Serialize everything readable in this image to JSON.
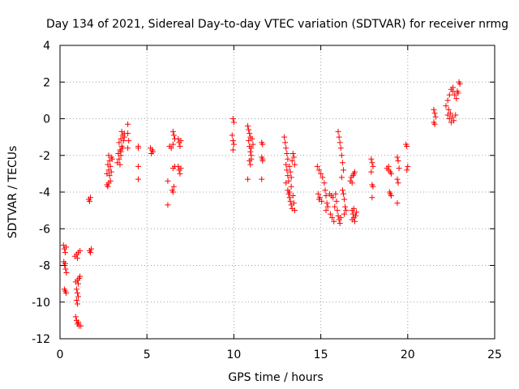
{
  "chart_data": {
    "type": "scatter",
    "title": "Day 134 of 2021, Sidereal Day-to-day VTEC variation (SDTVAR) for receiver nrmg",
    "xlabel": "GPS time / hours",
    "ylabel": "SDTVAR / TECUs",
    "xlim": [
      0,
      25
    ],
    "ylim": [
      -12,
      4
    ],
    "xticks": [
      0,
      5,
      10,
      15,
      20,
      25
    ],
    "yticks": [
      -12,
      -10,
      -8,
      -6,
      -4,
      -2,
      0,
      2,
      4
    ],
    "grid": true,
    "marker": "+",
    "marker_color": "#ff0000",
    "series": [
      {
        "name": "SDTVAR",
        "points": [
          [
            0.2,
            -6.9
          ],
          [
            0.25,
            -7.1
          ],
          [
            0.3,
            -7.3
          ],
          [
            0.35,
            -7.0
          ],
          [
            0.22,
            -7.8
          ],
          [
            0.27,
            -8.0
          ],
          [
            0.32,
            -8.2
          ],
          [
            0.37,
            -8.4
          ],
          [
            0.3,
            -7.9
          ],
          [
            0.25,
            -9.3
          ],
          [
            0.3,
            -9.4
          ],
          [
            0.35,
            -9.5
          ],
          [
            0.85,
            -7.5
          ],
          [
            0.95,
            -7.4
          ],
          [
            1.05,
            -7.3
          ],
          [
            1.15,
            -7.2
          ],
          [
            1.0,
            -7.6
          ],
          [
            0.9,
            -8.9
          ],
          [
            1.0,
            -8.8
          ],
          [
            1.1,
            -8.7
          ],
          [
            1.15,
            -8.6
          ],
          [
            1.05,
            -9.0
          ],
          [
            0.95,
            -9.3
          ],
          [
            1.0,
            -9.5
          ],
          [
            1.05,
            -9.7
          ],
          [
            0.95,
            -9.9
          ],
          [
            1.0,
            -10.1
          ],
          [
            0.9,
            -10.8
          ],
          [
            0.95,
            -11.0
          ],
          [
            1.0,
            -11.2
          ],
          [
            1.1,
            -11.3
          ],
          [
            1.2,
            -11.3
          ],
          [
            1.05,
            -11.1
          ],
          [
            1.7,
            -7.2
          ],
          [
            1.8,
            -7.1
          ],
          [
            1.75,
            -7.3
          ],
          [
            1.65,
            -4.4
          ],
          [
            1.75,
            -4.3
          ],
          [
            1.7,
            -4.5
          ],
          [
            2.7,
            -3.6
          ],
          [
            2.8,
            -3.5
          ],
          [
            2.9,
            -3.4
          ],
          [
            2.75,
            -3.7
          ],
          [
            2.7,
            -3.0
          ],
          [
            2.8,
            -2.8
          ],
          [
            2.9,
            -2.6
          ],
          [
            2.75,
            -2.5
          ],
          [
            2.85,
            -2.3
          ],
          [
            2.95,
            -2.1
          ],
          [
            2.8,
            -2.0
          ],
          [
            3.0,
            -2.2
          ],
          [
            2.85,
            -3.1
          ],
          [
            2.95,
            -2.9
          ],
          [
            3.3,
            -2.4
          ],
          [
            3.4,
            -2.2
          ],
          [
            3.5,
            -2.0
          ],
          [
            3.35,
            -1.9
          ],
          [
            3.45,
            -1.7
          ],
          [
            3.55,
            -1.5
          ],
          [
            3.4,
            -1.3
          ],
          [
            3.5,
            -1.1
          ],
          [
            3.6,
            -0.9
          ],
          [
            3.7,
            -0.8
          ],
          [
            3.55,
            -0.7
          ],
          [
            3.65,
            -1.2
          ],
          [
            3.6,
            -1.6
          ],
          [
            3.45,
            -2.5
          ],
          [
            3.7,
            -1.0
          ],
          [
            3.5,
            -1.8
          ],
          [
            3.9,
            -0.3
          ],
          [
            3.9,
            -0.8
          ],
          [
            3.95,
            -1.2
          ],
          [
            3.9,
            -1.6
          ],
          [
            4.5,
            -1.5
          ],
          [
            4.5,
            -1.6
          ],
          [
            4.5,
            -2.6
          ],
          [
            4.5,
            -3.3
          ],
          [
            5.2,
            -1.6
          ],
          [
            5.3,
            -1.7
          ],
          [
            5.25,
            -1.9
          ],
          [
            5.35,
            -1.8
          ],
          [
            6.2,
            -3.4
          ],
          [
            6.2,
            -4.7
          ],
          [
            6.3,
            -1.5
          ],
          [
            6.4,
            -1.6
          ],
          [
            6.5,
            -1.4
          ],
          [
            6.5,
            -0.7
          ],
          [
            6.55,
            -0.9
          ],
          [
            6.6,
            -1.1
          ],
          [
            6.5,
            -2.7
          ],
          [
            6.6,
            -2.6
          ],
          [
            6.45,
            -3.9
          ],
          [
            6.5,
            -4.0
          ],
          [
            6.55,
            -3.7
          ],
          [
            6.8,
            -1.1
          ],
          [
            6.85,
            -1.3
          ],
          [
            6.9,
            -1.5
          ],
          [
            6.95,
            -1.2
          ],
          [
            6.8,
            -2.6
          ],
          [
            6.85,
            -2.8
          ],
          [
            6.9,
            -3.0
          ],
          [
            6.95,
            -2.7
          ],
          [
            9.95,
            0.0
          ],
          [
            10.0,
            -0.2
          ],
          [
            9.9,
            -0.9
          ],
          [
            9.95,
            -1.2
          ],
          [
            10.0,
            -1.4
          ],
          [
            9.95,
            -1.7
          ],
          [
            10.8,
            -0.4
          ],
          [
            10.85,
            -0.6
          ],
          [
            10.9,
            -0.8
          ],
          [
            10.95,
            -1.0
          ],
          [
            10.85,
            -1.2
          ],
          [
            10.9,
            -1.5
          ],
          [
            10.95,
            -1.8
          ],
          [
            11.0,
            -2.0
          ],
          [
            11.05,
            -1.1
          ],
          [
            11.1,
            -1.4
          ],
          [
            10.9,
            -2.3
          ],
          [
            10.8,
            -3.3
          ],
          [
            11.0,
            -1.6
          ],
          [
            11.0,
            -2.2
          ],
          [
            10.95,
            -2.5
          ],
          [
            11.6,
            -1.3
          ],
          [
            11.65,
            -1.4
          ],
          [
            11.6,
            -2.1
          ],
          [
            11.65,
            -2.3
          ],
          [
            11.6,
            -3.3
          ],
          [
            11.65,
            -2.2
          ],
          [
            12.9,
            -1.0
          ],
          [
            12.95,
            -1.3
          ],
          [
            13.0,
            -1.6
          ],
          [
            13.05,
            -1.9
          ],
          [
            13.1,
            -2.2
          ],
          [
            13.0,
            -2.5
          ],
          [
            13.05,
            -2.8
          ],
          [
            13.1,
            -3.1
          ],
          [
            13.15,
            -3.4
          ],
          [
            13.2,
            -2.6
          ],
          [
            13.25,
            -2.9
          ],
          [
            13.3,
            -3.2
          ],
          [
            13.35,
            -2.3
          ],
          [
            13.4,
            -1.9
          ],
          [
            13.45,
            -2.1
          ],
          [
            13.5,
            -2.5
          ],
          [
            13.1,
            -3.9
          ],
          [
            13.15,
            -4.1
          ],
          [
            13.2,
            -4.3
          ],
          [
            13.25,
            -4.5
          ],
          [
            13.3,
            -4.7
          ],
          [
            13.35,
            -4.9
          ],
          [
            13.4,
            -4.2
          ],
          [
            13.45,
            -4.6
          ],
          [
            13.5,
            -5.0
          ],
          [
            13.2,
            -4.0
          ],
          [
            13.3,
            -3.7
          ],
          [
            13.0,
            -3.5
          ],
          [
            14.8,
            -2.6
          ],
          [
            14.9,
            -2.8
          ],
          [
            15.0,
            -3.0
          ],
          [
            15.1,
            -3.2
          ],
          [
            14.85,
            -4.1
          ],
          [
            14.95,
            -4.3
          ],
          [
            15.05,
            -4.5
          ],
          [
            14.9,
            -4.4
          ],
          [
            15.2,
            -3.5
          ],
          [
            15.25,
            -3.9
          ],
          [
            15.3,
            -4.2
          ],
          [
            15.35,
            -4.6
          ],
          [
            15.4,
            -4.8
          ],
          [
            15.3,
            -5.0
          ],
          [
            15.5,
            -4.1
          ],
          [
            15.6,
            -4.2
          ],
          [
            15.7,
            -4.3
          ],
          [
            15.55,
            -5.2
          ],
          [
            15.65,
            -5.4
          ],
          [
            15.75,
            -5.6
          ],
          [
            15.8,
            -4.8
          ],
          [
            15.85,
            -4.1
          ],
          [
            15.9,
            -4.5
          ],
          [
            15.95,
            -5.0
          ],
          [
            16.0,
            -5.3
          ],
          [
            16.05,
            -5.5
          ],
          [
            16.1,
            -5.7
          ],
          [
            16.15,
            -5.4
          ],
          [
            16.0,
            -0.7
          ],
          [
            16.05,
            -1.0
          ],
          [
            16.1,
            -1.3
          ],
          [
            16.15,
            -1.6
          ],
          [
            16.2,
            -2.0
          ],
          [
            16.25,
            -2.4
          ],
          [
            16.3,
            -2.8
          ],
          [
            16.2,
            -3.2
          ],
          [
            16.25,
            -3.9
          ],
          [
            16.3,
            -4.1
          ],
          [
            16.35,
            -4.4
          ],
          [
            16.4,
            -4.8
          ],
          [
            16.35,
            -5.2
          ],
          [
            16.45,
            -5.0
          ],
          [
            16.7,
            -3.4
          ],
          [
            16.75,
            -3.2
          ],
          [
            16.8,
            -3.5
          ],
          [
            16.85,
            -3.1
          ],
          [
            16.9,
            -3.0
          ],
          [
            16.95,
            -2.9
          ],
          [
            16.8,
            -5.0
          ],
          [
            16.85,
            -5.2
          ],
          [
            16.9,
            -5.4
          ],
          [
            16.95,
            -5.6
          ],
          [
            17.0,
            -5.3
          ],
          [
            17.05,
            -5.1
          ],
          [
            16.9,
            -4.9
          ],
          [
            16.8,
            -5.5
          ],
          [
            17.9,
            -2.2
          ],
          [
            17.95,
            -2.4
          ],
          [
            18.0,
            -2.6
          ],
          [
            17.9,
            -2.9
          ],
          [
            17.95,
            -3.6
          ],
          [
            18.0,
            -3.7
          ],
          [
            17.95,
            -4.3
          ],
          [
            18.8,
            -2.7
          ],
          [
            18.9,
            -2.8
          ],
          [
            19.0,
            -2.9
          ],
          [
            19.05,
            -3.0
          ],
          [
            18.9,
            -2.6
          ],
          [
            19.0,
            -4.1
          ],
          [
            19.05,
            -4.2
          ],
          [
            18.95,
            -4.0
          ],
          [
            19.4,
            -2.1
          ],
          [
            19.45,
            -2.3
          ],
          [
            19.5,
            -2.7
          ],
          [
            19.4,
            -3.3
          ],
          [
            19.45,
            -3.5
          ],
          [
            19.4,
            -4.6
          ],
          [
            19.9,
            -1.4
          ],
          [
            19.95,
            -1.5
          ],
          [
            20.0,
            -2.6
          ],
          [
            19.95,
            -2.8
          ],
          [
            21.5,
            0.5
          ],
          [
            21.55,
            0.3
          ],
          [
            21.6,
            0.1
          ],
          [
            21.5,
            -0.2
          ],
          [
            21.55,
            -0.3
          ],
          [
            22.2,
            0.7
          ],
          [
            22.3,
            1.0
          ],
          [
            22.4,
            1.3
          ],
          [
            22.5,
            1.6
          ],
          [
            22.6,
            1.5
          ],
          [
            22.7,
            1.3
          ],
          [
            22.8,
            1.1
          ],
          [
            22.35,
            0.5
          ],
          [
            22.45,
            0.3
          ],
          [
            22.55,
            0.1
          ],
          [
            22.65,
            -0.1
          ],
          [
            22.75,
            0.2
          ],
          [
            22.85,
            1.5
          ],
          [
            22.9,
            1.4
          ],
          [
            23.0,
            1.9
          ],
          [
            22.95,
            2.0
          ],
          [
            22.5,
            -0.2
          ],
          [
            22.6,
            1.7
          ],
          [
            22.4,
            0.0
          ],
          [
            22.3,
            0.2
          ]
        ]
      }
    ]
  }
}
